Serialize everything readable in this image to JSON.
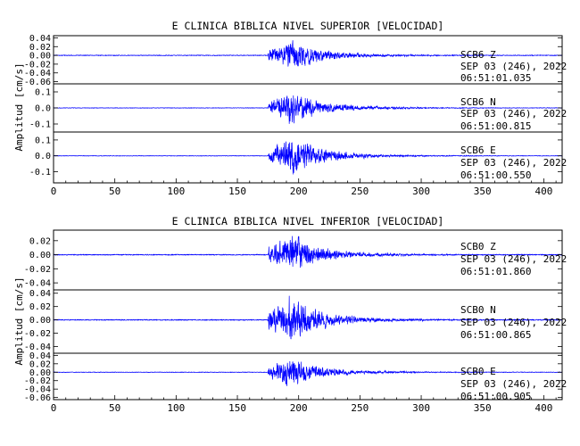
{
  "accent": "#0000ff",
  "chart_data": [
    {
      "type": "line",
      "title": "E CLINICA BIBLICA NIVEL SUPERIOR [VELOCIDAD]",
      "ylabel": "Amplitud [cm/s]",
      "xlim": [
        0,
        415
      ],
      "x_ticks": [
        "0",
        "50",
        "100",
        "150",
        "200",
        "250",
        "300",
        "350",
        "400"
      ],
      "event": {
        "onset": 175,
        "peak": 193,
        "tail_end": 330
      },
      "channels": [
        {
          "label": "SCB6   Z",
          "date": "SEP 03 (246), 2022",
          "time": "06:51:01.035",
          "ylim": [
            -0.065,
            0.045
          ],
          "y_ticks": [
            -0.06,
            -0.04,
            -0.02,
            0.0,
            0.02,
            0.04
          ],
          "y_tick_labels": [
            "-0.06",
            "-0.04",
            "-0.02",
            "0.00",
            "0.02",
            "0.04"
          ],
          "peak_amplitude": 0.04,
          "noise_amplitude": 0.001
        },
        {
          "label": "SCB6   N",
          "date": "SEP 03 (246), 2022",
          "time": "06:51:00.815",
          "ylim": [
            -0.15,
            0.15
          ],
          "y_ticks": [
            -0.1,
            0.0,
            0.1
          ],
          "y_tick_labels": [
            "-0.1",
            "0.0",
            "0.1"
          ],
          "peak_amplitude": 0.12,
          "noise_amplitude": 0.002
        },
        {
          "label": "SCB6   E",
          "date": "SEP 03 (246), 2022",
          "time": "06:51:00.550",
          "ylim": [
            -0.17,
            0.15
          ],
          "y_ticks": [
            -0.1,
            0.0,
            0.1
          ],
          "y_tick_labels": [
            "-0.1",
            "0.0",
            "0.1"
          ],
          "peak_amplitude": 0.13,
          "noise_amplitude": 0.002
        }
      ]
    },
    {
      "type": "line",
      "title": "E CLINICA BIBLICA NIVEL INFERIOR [VELOCIDAD]",
      "ylabel": "Amplitud [cm/s]",
      "xlim": [
        0,
        415
      ],
      "x_ticks": [
        "0",
        "50",
        "100",
        "150",
        "200",
        "250",
        "300",
        "350",
        "400"
      ],
      "event": {
        "onset": 175,
        "peak": 193,
        "tail_end": 330
      },
      "channels": [
        {
          "label": "SCB0   Z",
          "date": "SEP 03 (246), 2022",
          "time": "06:51:01.860",
          "ylim": [
            -0.05,
            0.035
          ],
          "y_ticks": [
            -0.04,
            -0.02,
            0.0,
            0.02
          ],
          "y_tick_labels": [
            "-0.04",
            "-0.02",
            "0.00",
            "0.02"
          ],
          "peak_amplitude": 0.03,
          "noise_amplitude": 0.0008
        },
        {
          "label": "SCB0   N",
          "date": "SEP 03 (246), 2022",
          "time": "06:51:00.865",
          "ylim": [
            -0.05,
            0.045
          ],
          "y_ticks": [
            -0.04,
            -0.02,
            0.0,
            0.02,
            0.04
          ],
          "y_tick_labels": [
            "-0.04",
            "-0.02",
            "0.00",
            "0.02",
            "0.04"
          ],
          "peak_amplitude": 0.04,
          "noise_amplitude": 0.0008
        },
        {
          "label": "SCB0   E",
          "date": "SEP 03 (246), 2022",
          "time": "06:51:00.905",
          "ylim": [
            -0.065,
            0.045
          ],
          "y_ticks": [
            -0.06,
            -0.04,
            -0.02,
            0.0,
            0.02,
            0.04
          ],
          "y_tick_labels": [
            "-0.06",
            "-0.04",
            "-0.02",
            "0.00",
            "0.02",
            "0.04"
          ],
          "peak_amplitude": 0.04,
          "noise_amplitude": 0.0008
        }
      ]
    }
  ]
}
